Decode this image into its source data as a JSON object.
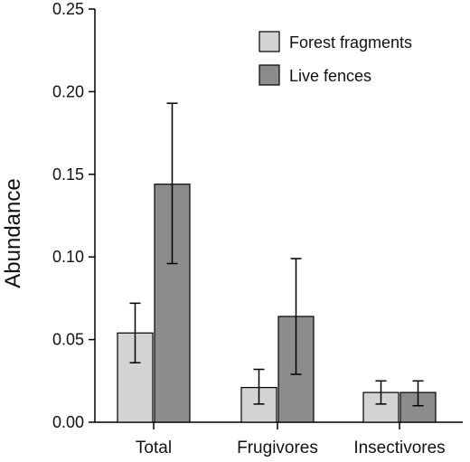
{
  "chart_data": {
    "type": "bar",
    "title": "",
    "xlabel": "",
    "ylabel": "Abundance",
    "ylim": [
      0,
      0.25
    ],
    "yticks": [
      "0.00",
      "0.05",
      "0.10",
      "0.15",
      "0.20",
      "0.25"
    ],
    "grid": false,
    "legend_position": "top-right",
    "categories": [
      "Total",
      "Frugivores",
      "Insectivores"
    ],
    "series": [
      {
        "name": "Forest fragments",
        "color": "#d3d3d3",
        "values": [
          0.054,
          0.021,
          0.018
        ],
        "error_low": [
          0.036,
          0.011,
          0.011
        ],
        "error_high": [
          0.072,
          0.032,
          0.025
        ]
      },
      {
        "name": "Live fences",
        "color": "#8c8c8c",
        "values": [
          0.144,
          0.064,
          0.018
        ],
        "error_low": [
          0.096,
          0.029,
          0.01
        ],
        "error_high": [
          0.193,
          0.099,
          0.025
        ]
      }
    ]
  }
}
